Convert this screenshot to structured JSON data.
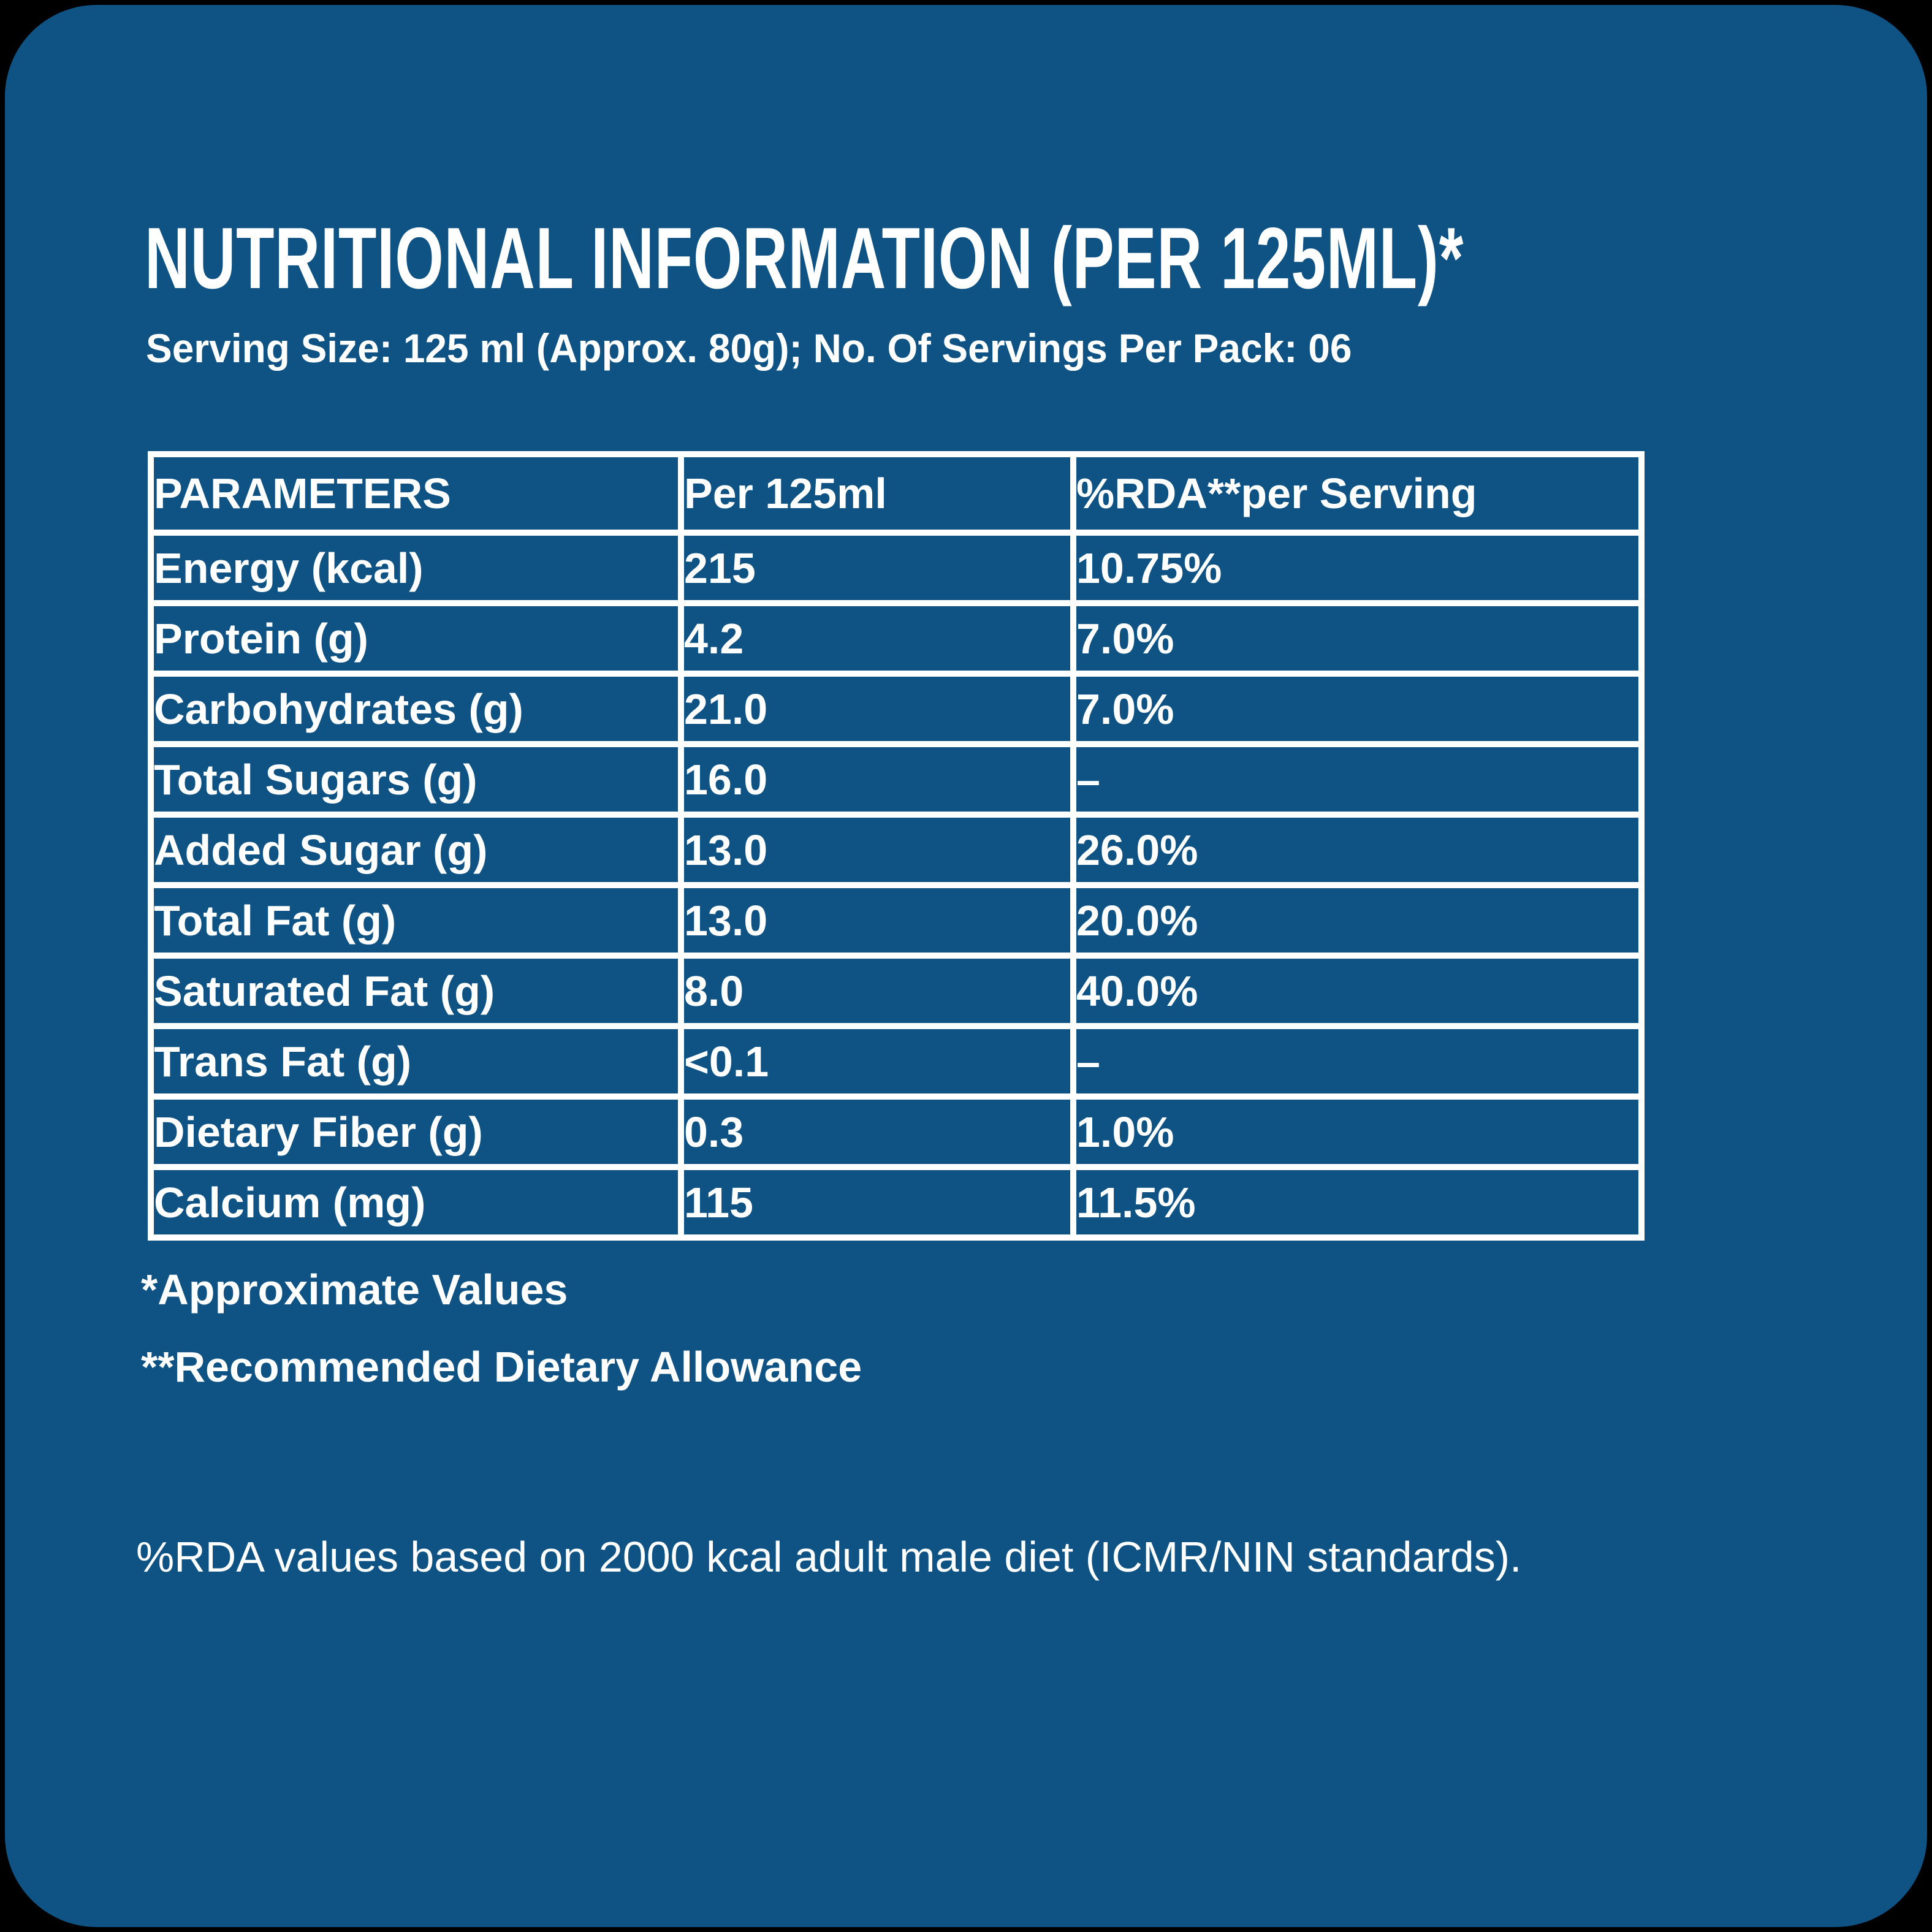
{
  "colors": {
    "page_bg": "#000000",
    "card_bg": "#0F5284",
    "text": "#FFFFFF",
    "grid": "#FFFFFF"
  },
  "header": {
    "title": "NUTRITIONAL INFORMATION (PER 125ML)*",
    "serving_info": "Serving Size: 125 ml (Approx. 80g); No. Of Servings Per Pack: 06"
  },
  "table": {
    "columns": [
      "PARAMETERS",
      "Per 125ml",
      "%RDA**per Serving"
    ],
    "rows": [
      {
        "parameter": "Energy (kcal)",
        "per_125ml": "215",
        "rda": "10.75%"
      },
      {
        "parameter": "Protein (g)",
        "per_125ml": "4.2",
        "rda": "7.0%"
      },
      {
        "parameter": "Carbohydrates (g)",
        "per_125ml": "21.0",
        "rda": "7.0%"
      },
      {
        "parameter": "Total Sugars (g)",
        "per_125ml": "16.0",
        "rda": "–"
      },
      {
        "parameter": "Added Sugar (g)",
        "per_125ml": "13.0",
        "rda": "26.0%"
      },
      {
        "parameter": "Total Fat (g)",
        "per_125ml": "13.0",
        "rda": "20.0%"
      },
      {
        "parameter": "Saturated Fat (g)",
        "per_125ml": "8.0",
        "rda": "40.0%"
      },
      {
        "parameter": "Trans Fat (g)",
        "per_125ml": "<0.1",
        "rda": "–"
      },
      {
        "parameter": "Dietary Fiber (g)",
        "per_125ml": "0.3",
        "rda": "1.0%"
      },
      {
        "parameter": "Calcium (mg)",
        "per_125ml": "115",
        "rda": "11.5%"
      }
    ]
  },
  "footnotes": {
    "approximate": "*Approximate Values",
    "rda_definition": "**Recommended Dietary Allowance"
  },
  "rda_note": "%RDA values based on 2000 kcal adult male diet (ICMR/NIN standards)."
}
